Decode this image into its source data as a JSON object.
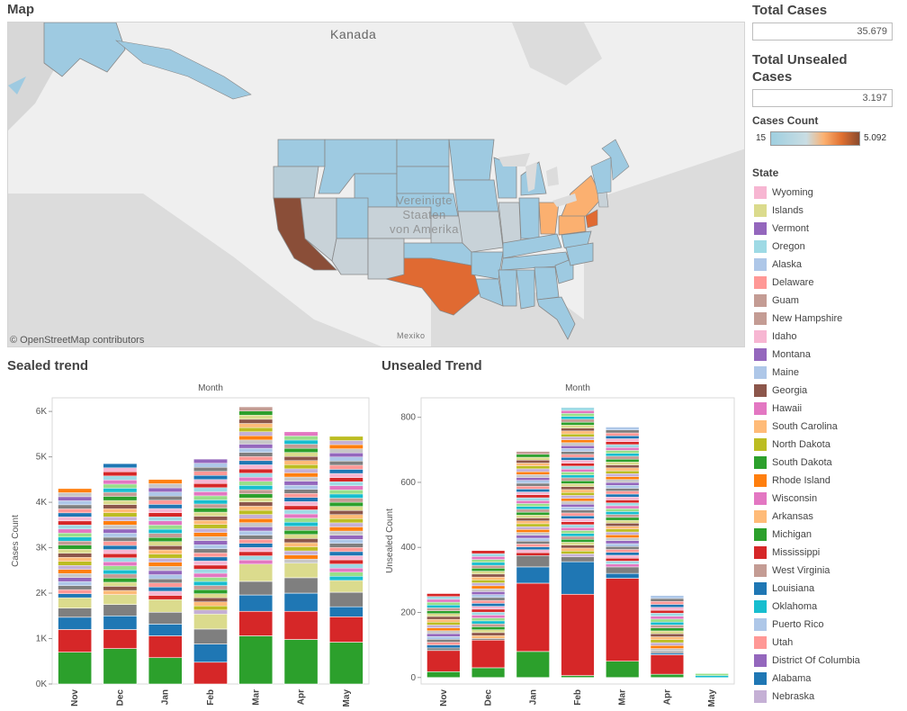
{
  "map": {
    "title": "Map",
    "labels": {
      "canada": "Kanada",
      "usa_line1": "Vereinigte",
      "usa_line2": "Staaten",
      "usa_line3": "von Amerika",
      "mexico": "Mexiko"
    },
    "credit": "© OpenStreetMap contributors",
    "colors": {
      "low": "#9ecae1",
      "grey": "#c8d2d8",
      "mid": "#fbb070",
      "high": "#e06a32",
      "max": "#8a4e38"
    }
  },
  "kpis": {
    "total_cases_title": "Total Cases",
    "total_cases_value": "35.679",
    "total_unsealed_title": "Total Unsealed Cases",
    "total_unsealed_value": "3.197"
  },
  "cases_count": {
    "title": "Cases Count",
    "min": "15",
    "max": "5.092"
  },
  "state_legend": {
    "title": "State",
    "items": [
      {
        "label": "Wyoming",
        "color": "#f7b6d2"
      },
      {
        "label": "Islands",
        "color": "#dbdb8d"
      },
      {
        "label": "Vermont",
        "color": "#9467bd"
      },
      {
        "label": "Oregon",
        "color": "#9edae5"
      },
      {
        "label": "Alaska",
        "color": "#aec7e8"
      },
      {
        "label": "Delaware",
        "color": "#ff9896"
      },
      {
        "label": "Guam",
        "color": "#c49c94"
      },
      {
        "label": "New Hampshire",
        "color": "#c49c94"
      },
      {
        "label": "Idaho",
        "color": "#f7b6d2"
      },
      {
        "label": "Montana",
        "color": "#9467bd"
      },
      {
        "label": "Maine",
        "color": "#aec7e8"
      },
      {
        "label": "Georgia",
        "color": "#8c564b"
      },
      {
        "label": "Hawaii",
        "color": "#e377c2"
      },
      {
        "label": "South Carolina",
        "color": "#ffbb78"
      },
      {
        "label": "North Dakota",
        "color": "#bcbd22"
      },
      {
        "label": "South Dakota",
        "color": "#2ca02c"
      },
      {
        "label": "Rhode Island",
        "color": "#ff7f0e"
      },
      {
        "label": "Wisconsin",
        "color": "#e377c2"
      },
      {
        "label": "Arkansas",
        "color": "#ffbb78"
      },
      {
        "label": "Michigan",
        "color": "#2ca02c"
      },
      {
        "label": "Mississippi",
        "color": "#d62728"
      },
      {
        "label": "West Virginia",
        "color": "#c49c94"
      },
      {
        "label": "Louisiana",
        "color": "#1f77b4"
      },
      {
        "label": "Oklahoma",
        "color": "#17becf"
      },
      {
        "label": "Puerto Rico",
        "color": "#aec7e8"
      },
      {
        "label": "Utah",
        "color": "#ff9896"
      },
      {
        "label": "District Of Columbia",
        "color": "#9467bd"
      },
      {
        "label": "Alabama",
        "color": "#1f77b4"
      },
      {
        "label": "Nebraska",
        "color": "#c5b0d5"
      }
    ]
  },
  "chart_data": [
    {
      "type": "bar",
      "title": "Sealed trend",
      "xlabel": "Month",
      "ylabel": "Cases Count",
      "categories": [
        "Nov",
        "Dec",
        "Jan",
        "Feb",
        "Mar",
        "Apr",
        "May"
      ],
      "y_ticks": [
        "0K",
        "1K",
        "2K",
        "3K",
        "4K",
        "5K",
        "6K"
      ],
      "ylim": [
        0,
        6300
      ],
      "totals": [
        4300,
        4850,
        4500,
        4950,
        6100,
        5550,
        5450
      ],
      "segments_bottom": [
        {
          "name": "Michigan",
          "color": "#2ca02c",
          "values": [
            700,
            780,
            580,
            0,
            1060,
            980,
            920
          ]
        },
        {
          "name": "Mississippi",
          "color": "#d62728",
          "values": [
            500,
            420,
            480,
            480,
            540,
            620,
            560
          ]
        },
        {
          "name": "Louisiana",
          "color": "#1f77b4",
          "values": [
            270,
            300,
            260,
            400,
            360,
            400,
            220
          ]
        },
        {
          "name": "Grey",
          "color": "#7f7f7f",
          "values": [
            200,
            250,
            260,
            330,
            300,
            340,
            320
          ]
        },
        {
          "name": "Olive",
          "color": "#dbdb8d",
          "values": [
            230,
            220,
            280,
            330,
            380,
            320,
            260
          ]
        }
      ]
    },
    {
      "type": "bar",
      "title": "Unsealed Trend",
      "xlabel": "Month",
      "ylabel": "Unsealed Count",
      "categories": [
        "Nov",
        "Dec",
        "Jan",
        "Feb",
        "Mar",
        "Apr",
        "May"
      ],
      "y_ticks": [
        "0",
        "200",
        "400",
        "600",
        "800"
      ],
      "ylim": [
        -20,
        860
      ],
      "totals": [
        258,
        390,
        695,
        830,
        770,
        252,
        12
      ],
      "segments_bottom": [
        {
          "name": "Michigan",
          "color": "#2ca02c",
          "values": [
            18,
            30,
            80,
            6,
            50,
            10,
            0
          ]
        },
        {
          "name": "Mississippi",
          "color": "#d62728",
          "values": [
            65,
            85,
            210,
            250,
            255,
            60,
            0
          ]
        },
        {
          "name": "Louisiana",
          "color": "#1f77b4",
          "values": [
            0,
            0,
            50,
            100,
            15,
            5,
            0
          ]
        },
        {
          "name": "Grey",
          "color": "#7f7f7f",
          "values": [
            8,
            5,
            35,
            15,
            20,
            5,
            0
          ]
        }
      ]
    }
  ]
}
